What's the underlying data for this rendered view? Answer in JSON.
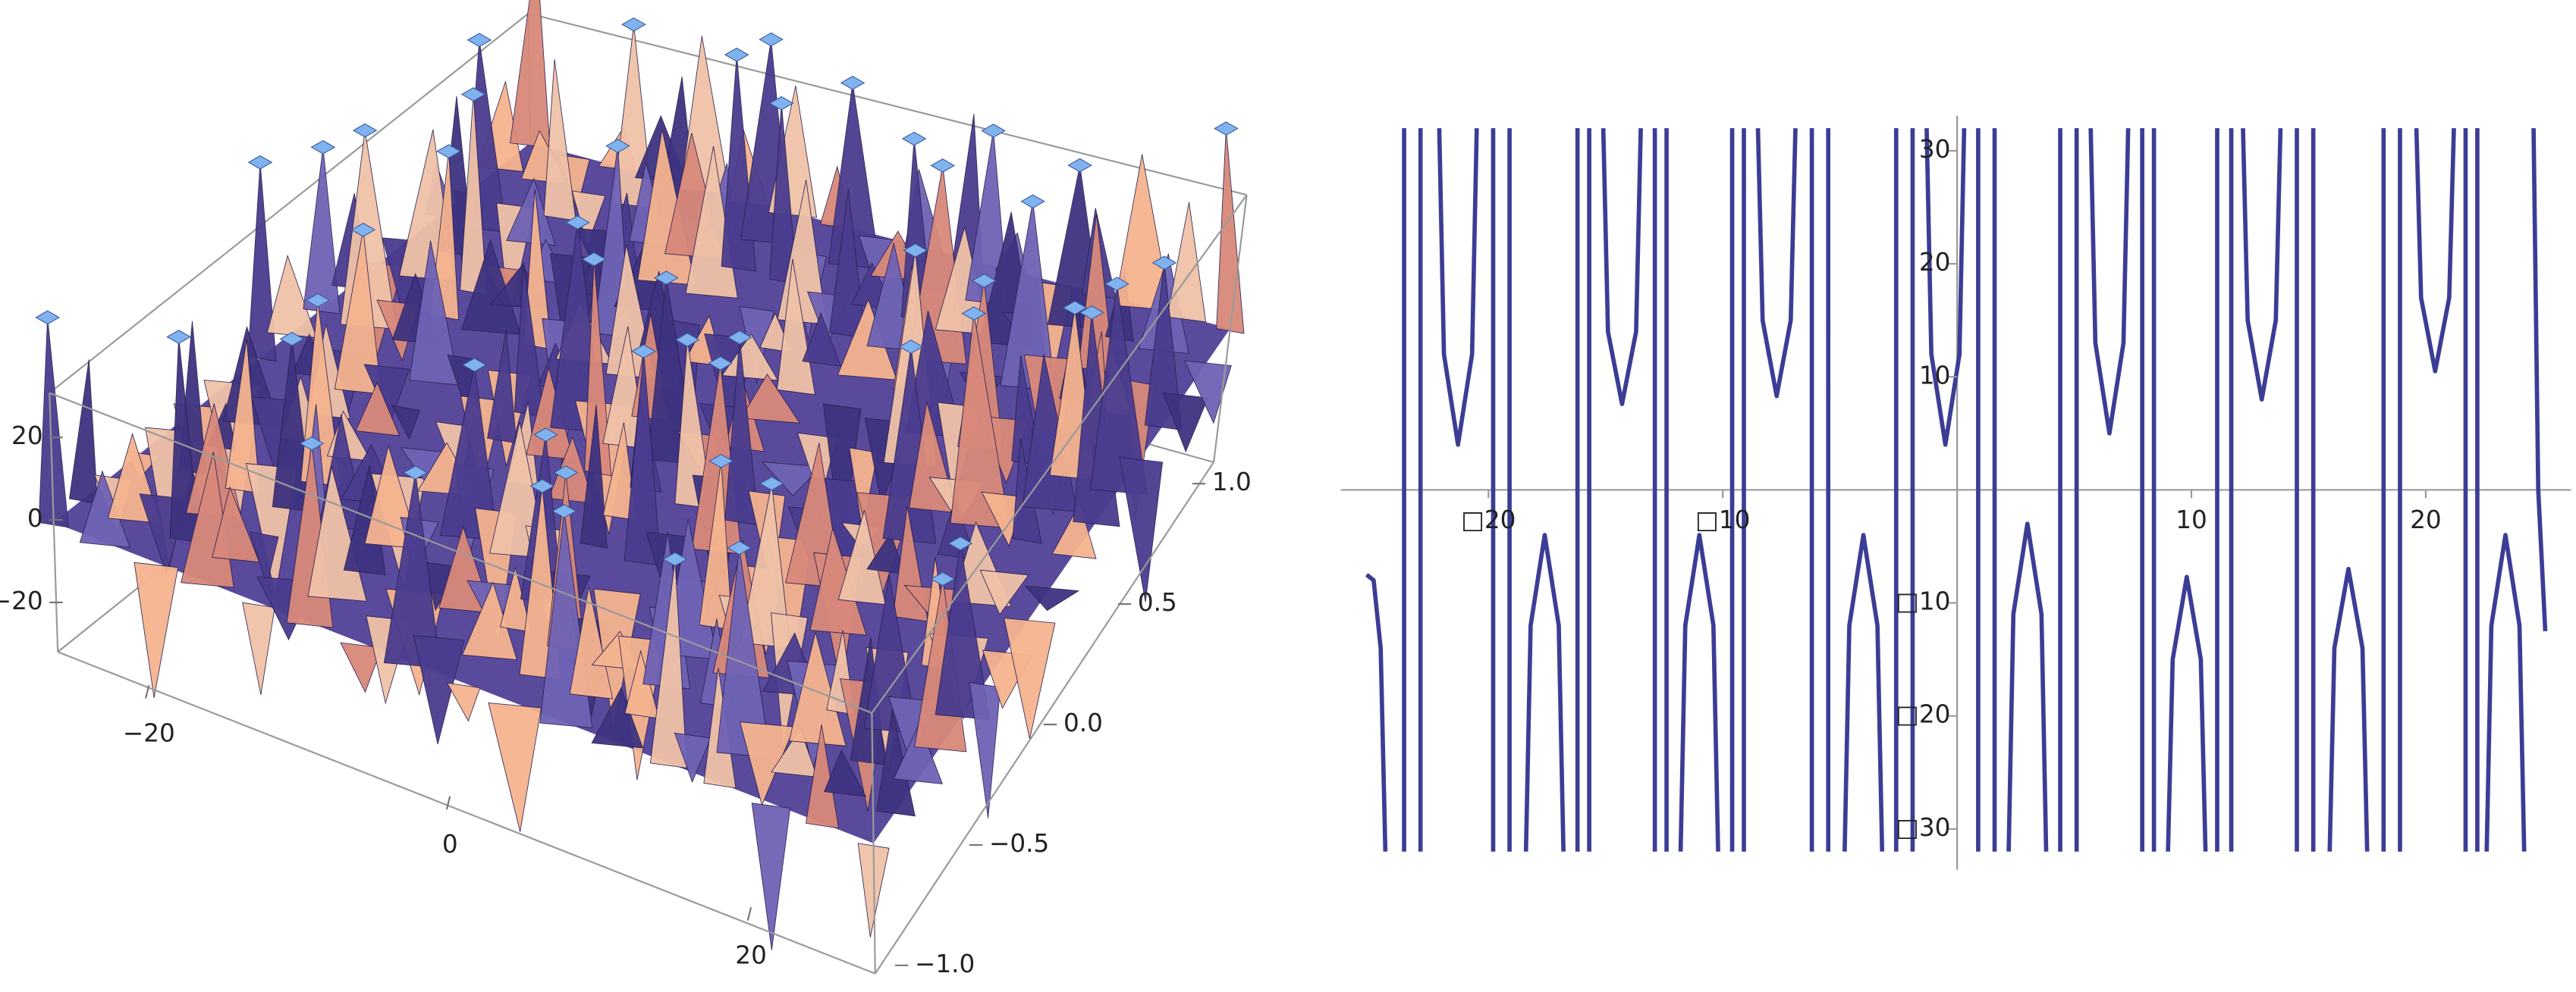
{
  "chart_data": [
    {
      "type": "surface3d",
      "xlim": [
        -26,
        26
      ],
      "ylim": [
        -1,
        1
      ],
      "zlim": [
        -30,
        30
      ],
      "xticks": [
        {
          "value": -20,
          "label": "−20"
        },
        0,
        20
      ],
      "yticks": [
        {
          "value": -1,
          "label": "−1.0"
        },
        {
          "value": -0.5,
          "label": "−0.5"
        },
        {
          "value": 0,
          "label": "0.0"
        },
        0.5,
        {
          "value": 1,
          "label": "1.0"
        }
      ],
      "zticks": [
        {
          "value": -20,
          "label": "−20"
        },
        0,
        20
      ]
    },
    {
      "type": "line",
      "xlim": [
        -26.3,
        26.2
      ],
      "ylim": [
        -33.6,
        33.1
      ],
      "xticks": [
        {
          "value": -20,
          "label": "□20"
        },
        {
          "value": -10,
          "label": "□10"
        },
        10,
        20
      ],
      "yticks": [
        {
          "value": -30,
          "label": "□30"
        },
        {
          "value": -20,
          "label": "□20"
        },
        {
          "value": -10,
          "label": "□10"
        },
        10,
        20,
        30
      ],
      "series": [
        {
          "color": "#3b3d95",
          "x": [
            -25.2,
            -24.9,
            -24.6,
            -24.4,
            null,
            -23.6,
            -23.6,
            null,
            -22.9,
            -22.9,
            null,
            -22.1,
            -21.9,
            -21.3,
            -20.7,
            -20.5,
            null,
            -19.8,
            -19.8,
            null,
            -19.1,
            -19.1,
            null,
            -18.4,
            -18.2,
            -17.6,
            -17,
            -16.8,
            null,
            -16.2,
            -16.2,
            null,
            -15.7,
            -15.7,
            null,
            -15.1,
            -14.9,
            -14.3,
            -13.7,
            -13.5,
            null,
            -12.9,
            -12.9,
            null,
            -12.4,
            -12.4,
            null,
            -11.8,
            -11.6,
            -11,
            -10.4,
            -10.2,
            null,
            -9.6,
            -9.6,
            null,
            -9.1,
            -9.1,
            null,
            -8.5,
            -8.3,
            -7.7,
            -7.1,
            -6.9,
            null,
            -6.2,
            -6.2,
            null,
            -5.5,
            -5.5,
            null,
            -4.8,
            -4.6,
            -4,
            -3.4,
            -3.2,
            null,
            -2.6,
            -2.6,
            null,
            -1.9,
            -1.9,
            null,
            -1.3,
            -1.1,
            -0.5,
            0.1,
            0.3,
            null,
            0.9,
            0.9,
            null,
            1.6,
            1.6,
            null,
            2.2,
            2.4,
            3,
            3.6,
            3.8,
            null,
            4.4,
            4.4,
            null,
            5.1,
            5.1,
            null,
            5.7,
            5.9,
            6.5,
            7.1,
            7.3,
            null,
            7.9,
            7.9,
            null,
            8.4,
            8.4,
            null,
            9,
            9.2,
            9.8,
            10.4,
            10.6,
            null,
            11.1,
            11.1,
            null,
            11.7,
            11.7,
            null,
            12.2,
            12.4,
            13,
            13.6,
            13.8,
            null,
            14.5,
            14.5,
            null,
            15.2,
            15.2,
            null,
            15.9,
            16.1,
            16.7,
            17.3,
            17.5,
            null,
            18.2,
            18.2,
            null,
            18.9,
            18.9,
            null,
            19.6,
            19.8,
            20.4,
            21,
            21.2,
            null,
            21.7,
            21.7,
            null,
            22.2,
            22.2,
            null,
            22.6,
            22.8,
            23.4,
            24,
            24.2,
            null,
            24.6,
            24.8,
            25.1
          ],
          "values": [
            -7.5,
            -8,
            -14,
            -32,
            null,
            32,
            -32,
            null,
            32,
            -32,
            null,
            32,
            12,
            4,
            12,
            32,
            null,
            32,
            -32,
            null,
            32,
            -32,
            null,
            -32,
            -12,
            -4,
            -12,
            -32,
            null,
            32,
            -32,
            null,
            32,
            -32,
            null,
            32,
            14,
            7.6,
            14,
            32,
            null,
            32,
            -32,
            null,
            32,
            -32,
            null,
            -32,
            -12,
            -4,
            -12,
            -32,
            null,
            32,
            -32,
            null,
            32,
            -32,
            null,
            32,
            15,
            8.3,
            15,
            32,
            null,
            32,
            -32,
            null,
            32,
            -32,
            null,
            -32,
            -12,
            -4,
            -12,
            -32,
            null,
            32,
            -32,
            null,
            32,
            -32,
            null,
            32,
            12,
            4,
            12,
            32,
            null,
            32,
            -32,
            null,
            32,
            -32,
            null,
            -32,
            -11,
            -3,
            -11,
            -32,
            null,
            32,
            -32,
            null,
            32,
            -32,
            null,
            32,
            13,
            5,
            13,
            32,
            null,
            32,
            -32,
            null,
            32,
            -32,
            null,
            -32,
            -15,
            -7.7,
            -15,
            -32,
            null,
            32,
            -32,
            null,
            32,
            -32,
            null,
            32,
            15,
            8,
            15,
            32,
            null,
            32,
            -32,
            null,
            32,
            -32,
            null,
            -32,
            -14,
            -7,
            -14,
            -32,
            null,
            32,
            -32,
            null,
            32,
            -32,
            null,
            32,
            17,
            10.5,
            17,
            32,
            null,
            32,
            -32,
            null,
            32,
            -32,
            null,
            -32,
            -12,
            -4,
            -12,
            -32,
            null,
            32,
            0,
            -12.5
          ]
        }
      ]
    }
  ]
}
